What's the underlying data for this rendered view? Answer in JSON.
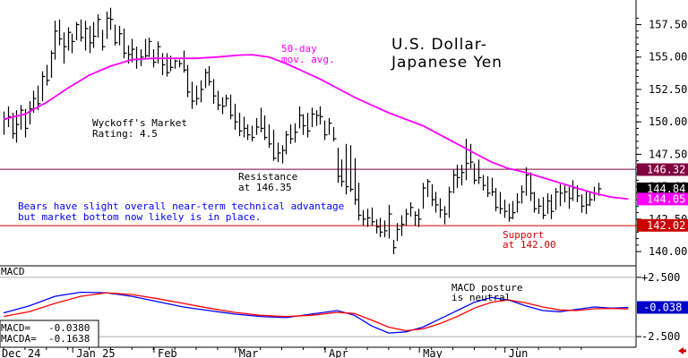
{
  "chart_data": [
    {
      "type": "ohlc",
      "title_line1": "U.S. Dollar-",
      "title_line2": "Japanese Yen",
      "ma_label_line1": "50-day",
      "ma_label_line2": "mov. avg.",
      "rating_line1": "Wyckoff's Market",
      "rating_line2": "Rating: 4.5",
      "resistance_label_line1": "Resistance",
      "resistance_label_line2": "at 146.35",
      "support_label_line1": "Support",
      "support_label_line2": "at 142.00",
      "commentary_line1": "Bears have slight overall near-term technical advantage",
      "commentary_line2": "but market bottom now likely is in place.",
      "x_labels": [
        "Dec 24",
        "Jan 25",
        "Feb",
        "Mar",
        "Apr",
        "May",
        "Jun"
      ],
      "y_ticks": [
        "157.50",
        "155.00",
        "152.50",
        "150.00",
        "147.50",
        "145.00",
        "142.50",
        "140.00"
      ],
      "y_tick_values": [
        157.5,
        155.0,
        152.5,
        150.0,
        147.5,
        145.0,
        142.5,
        140.0
      ],
      "ylim": [
        138.9,
        159.4
      ],
      "resistance": 146.35,
      "support": 142.0,
      "price_badges": [
        {
          "label": "146.32",
          "value": 146.32,
          "bg": "#800040",
          "fg": "#ffffff"
        },
        {
          "label": "144.84",
          "value": 144.84,
          "bg": "#000000",
          "fg": "#ffffff"
        },
        {
          "label": "144.05",
          "value": 144.05,
          "bg": "#ff00ff",
          "fg": "#ffffff"
        },
        {
          "label": "142.02",
          "value": 142.02,
          "bg": "#cc0000",
          "fg": "#ffffff"
        }
      ],
      "colors": {
        "bars": "#000000",
        "moving_average": "#ff00ff",
        "resistance_line": "#800040",
        "support_line": "#cc0000",
        "commentary": "#0000ff",
        "support_text": "#cc0000",
        "ma_text": "#ff00ff"
      },
      "bars": [
        [
          150.8,
          149.0,
          150.2
        ],
        [
          151.2,
          149.6,
          150.4
        ],
        [
          150.7,
          148.7,
          149.1
        ],
        [
          150.9,
          148.4,
          149.8
        ],
        [
          151.3,
          149.4,
          150.9
        ],
        [
          151.0,
          148.8,
          149.5
        ],
        [
          151.6,
          149.8,
          151.0
        ],
        [
          152.4,
          150.7,
          151.8
        ],
        [
          152.8,
          150.9,
          151.4
        ],
        [
          153.9,
          151.6,
          153.5
        ],
        [
          154.4,
          152.8,
          153.2
        ],
        [
          155.5,
          153.4,
          155.3
        ],
        [
          157.8,
          154.8,
          157.0
        ],
        [
          157.9,
          155.9,
          156.4
        ],
        [
          156.9,
          154.5,
          155.8
        ],
        [
          157.3,
          155.5,
          156.9
        ],
        [
          156.8,
          155.3,
          156.2
        ],
        [
          157.7,
          156.3,
          157.5
        ],
        [
          157.9,
          156.2,
          156.5
        ],
        [
          157.8,
          155.5,
          157.2
        ],
        [
          157.4,
          155.3,
          156.1
        ],
        [
          157.7,
          155.7,
          156.6
        ],
        [
          158.3,
          156.5,
          157.9
        ],
        [
          157.1,
          155.5,
          155.8
        ],
        [
          158.5,
          156.4,
          158.0
        ],
        [
          158.8,
          157.1,
          157.9
        ],
        [
          157.5,
          155.9,
          156.1
        ],
        [
          157.4,
          155.9,
          156.8
        ],
        [
          157.2,
          154.9,
          155.3
        ],
        [
          155.9,
          154.5,
          155.2
        ],
        [
          156.4,
          154.6,
          155.6
        ],
        [
          155.8,
          154.1,
          154.8
        ],
        [
          155.6,
          154.3,
          155.0
        ],
        [
          156.4,
          154.8,
          155.1
        ],
        [
          156.5,
          155.0,
          156.2
        ],
        [
          155.6,
          154.2,
          154.6
        ],
        [
          156.2,
          154.5,
          155.8
        ],
        [
          155.3,
          153.6,
          154.4
        ],
        [
          155.3,
          153.5,
          153.8
        ],
        [
          155.1,
          153.9,
          154.2
        ],
        [
          154.8,
          154.1,
          154.7
        ],
        [
          154.8,
          154.2,
          154.5
        ],
        [
          155.5,
          153.8,
          154.0
        ],
        [
          154.4,
          151.9,
          152.3
        ],
        [
          153.1,
          151.0,
          151.6
        ],
        [
          152.8,
          151.3,
          151.8
        ],
        [
          153.2,
          151.5,
          152.5
        ],
        [
          154.1,
          152.6,
          153.8
        ],
        [
          154.3,
          152.8,
          153.1
        ],
        [
          153.3,
          151.4,
          152.0
        ],
        [
          152.4,
          150.9,
          151.3
        ],
        [
          151.9,
          150.6,
          151.2
        ],
        [
          152.1,
          151.2,
          151.8
        ],
        [
          152.1,
          150.2,
          150.5
        ],
        [
          151.4,
          149.4,
          150.0
        ],
        [
          150.7,
          148.9,
          149.3
        ],
        [
          150.4,
          148.8,
          149.5
        ],
        [
          149.8,
          148.6,
          149.0
        ],
        [
          149.7,
          148.5,
          148.8
        ],
        [
          150.3,
          149.0,
          149.6
        ],
        [
          151.1,
          149.2,
          149.5
        ],
        [
          150.5,
          148.6,
          148.8
        ],
        [
          149.8,
          148.0,
          148.3
        ],
        [
          149.4,
          147.0,
          147.2
        ],
        [
          148.4,
          146.9,
          147.6
        ],
        [
          148.2,
          146.8,
          147.8
        ],
        [
          149.3,
          147.5,
          149.0
        ],
        [
          149.8,
          148.3,
          148.7
        ],
        [
          149.9,
          148.4,
          149.2
        ],
        [
          151.2,
          149.5,
          150.5
        ],
        [
          150.6,
          149.0,
          149.7
        ],
        [
          150.7,
          148.8,
          149.3
        ],
        [
          151.1,
          149.6,
          150.6
        ],
        [
          150.9,
          149.7,
          150.5
        ],
        [
          151.2,
          149.8,
          150.4
        ],
        [
          150.1,
          148.6,
          149.0
        ],
        [
          150.3,
          149.0,
          149.9
        ],
        [
          149.6,
          148.5,
          148.7
        ],
        [
          148.0,
          145.3,
          145.8
        ],
        [
          147.1,
          145.0,
          145.4
        ],
        [
          148.3,
          144.4,
          145.0
        ],
        [
          148.2,
          144.6,
          144.8
        ],
        [
          147.2,
          143.6,
          144.0
        ],
        [
          145.3,
          142.4,
          142.8
        ],
        [
          143.2,
          142.0,
          142.5
        ],
        [
          143.3,
          141.9,
          142.6
        ],
        [
          143.4,
          142.0,
          142.3
        ],
        [
          142.5,
          141.4,
          141.9
        ],
        [
          142.6,
          141.1,
          141.5
        ],
        [
          142.4,
          141.1,
          141.6
        ],
        [
          143.6,
          141.0,
          142.9
        ],
        [
          140.9,
          139.8,
          140.3
        ],
        [
          142.2,
          140.8,
          141.7
        ],
        [
          142.8,
          141.2,
          142.1
        ],
        [
          143.3,
          142.0,
          142.9
        ],
        [
          143.8,
          142.7,
          143.4
        ],
        [
          143.1,
          142.0,
          142.8
        ],
        [
          143.3,
          141.9,
          142.5
        ],
        [
          145.3,
          143.3,
          144.9
        ],
        [
          145.6,
          144.2,
          145.4
        ],
        [
          145.2,
          143.5,
          144.0
        ],
        [
          144.6,
          143.0,
          143.6
        ],
        [
          144.1,
          142.6,
          143.2
        ],
        [
          143.5,
          142.1,
          142.9
        ],
        [
          145.0,
          142.6,
          144.6
        ],
        [
          146.3,
          144.5,
          145.9
        ],
        [
          146.7,
          144.9,
          145.7
        ],
        [
          146.7,
          145.1,
          146.1
        ],
        [
          148.7,
          145.5,
          146.8
        ],
        [
          148.3,
          146.4,
          146.9
        ],
        [
          146.8,
          145.2,
          145.5
        ],
        [
          147.1,
          145.2,
          145.7
        ],
        [
          145.9,
          144.7,
          145.1
        ],
        [
          145.8,
          144.2,
          144.5
        ],
        [
          145.7,
          144.3,
          144.6
        ],
        [
          144.9,
          143.1,
          143.4
        ],
        [
          144.6,
          142.9,
          143.3
        ],
        [
          144.0,
          142.6,
          143.1
        ],
        [
          143.7,
          142.3,
          142.6
        ],
        [
          143.9,
          142.5,
          143.0
        ],
        [
          144.5,
          143.0,
          143.8
        ],
        [
          145.1,
          143.7,
          144.6
        ],
        [
          146.5,
          144.3,
          145.9
        ],
        [
          146.1,
          143.9,
          144.5
        ],
        [
          144.6,
          143.0,
          143.3
        ],
        [
          144.1,
          142.9,
          143.5
        ],
        [
          144.2,
          142.5,
          142.8
        ],
        [
          144.5,
          142.9,
          143.9
        ],
        [
          144.4,
          142.5,
          143.1
        ],
        [
          144.9,
          143.2,
          144.6
        ],
        [
          145.2,
          143.5,
          144.5
        ],
        [
          145.1,
          143.8,
          144.6
        ],
        [
          145.0,
          143.3,
          144.1
        ],
        [
          145.5,
          143.9,
          144.9
        ],
        [
          145.1,
          143.8,
          144.3
        ],
        [
          144.4,
          143.0,
          143.5
        ],
        [
          144.7,
          142.9,
          143.6
        ],
        [
          144.6,
          143.5,
          144.0
        ],
        [
          145.0,
          143.9,
          144.5
        ],
        [
          145.3,
          144.3,
          144.84
        ]
      ],
      "moving_average": [
        [
          0,
          150.2
        ],
        [
          5,
          150.6
        ],
        [
          10,
          151.5
        ],
        [
          15,
          152.6
        ],
        [
          20,
          153.6
        ],
        [
          25,
          154.3
        ],
        [
          30,
          154.8
        ],
        [
          35,
          154.9
        ],
        [
          40,
          154.9
        ],
        [
          45,
          154.9
        ],
        [
          50,
          155.0
        ],
        [
          55,
          155.15
        ],
        [
          58,
          155.18
        ],
        [
          62,
          155.0
        ],
        [
          66,
          154.5
        ],
        [
          70,
          153.9
        ],
        [
          74,
          153.3
        ],
        [
          78,
          152.6
        ],
        [
          82,
          151.9
        ],
        [
          86,
          151.3
        ],
        [
          90,
          150.7
        ],
        [
          94,
          150.2
        ],
        [
          98,
          149.7
        ],
        [
          102,
          149.0
        ],
        [
          106,
          148.3
        ],
        [
          110,
          147.6
        ],
        [
          114,
          146.9
        ],
        [
          118,
          146.4
        ],
        [
          122,
          146.1
        ],
        [
          126,
          145.7
        ],
        [
          130,
          145.3
        ],
        [
          134,
          144.9
        ],
        [
          138,
          144.5
        ],
        [
          142,
          144.2
        ],
        [
          146,
          144.05
        ]
      ]
    },
    {
      "type": "line",
      "title": "MACD",
      "y_ticks": [
        "+2.500",
        "-2.500"
      ],
      "y_tick_values": [
        2.5,
        -2.5
      ],
      "ylim": [
        -3.4,
        3.4
      ],
      "zero_badge": {
        "label": "-0.038",
        "value": -0.038,
        "bg": "#0000cc",
        "fg": "#ffffff"
      },
      "annotation_line1": "MACD posture",
      "annotation_line2": "is neutral",
      "readout_line1": "MACD=   -0.0380",
      "readout_line2": "MACDA=  -0.1638",
      "series": [
        {
          "name": "MACD",
          "color": "#0000ff",
          "points": [
            [
              0,
              -0.5
            ],
            [
              6,
              0.1
            ],
            [
              12,
              0.9
            ],
            [
              18,
              1.25
            ],
            [
              24,
              1.2
            ],
            [
              30,
              0.9
            ],
            [
              36,
              0.45
            ],
            [
              42,
              0.0
            ],
            [
              48,
              -0.3
            ],
            [
              54,
              -0.6
            ],
            [
              60,
              -0.8
            ],
            [
              66,
              -0.9
            ],
            [
              72,
              -0.6
            ],
            [
              78,
              -0.3
            ],
            [
              82,
              -0.7
            ],
            [
              86,
              -1.6
            ],
            [
              90,
              -2.2
            ],
            [
              94,
              -2.1
            ],
            [
              98,
              -1.7
            ],
            [
              102,
              -1.0
            ],
            [
              106,
              -0.3
            ],
            [
              110,
              0.4
            ],
            [
              114,
              0.8
            ],
            [
              118,
              0.6
            ],
            [
              122,
              0.1
            ],
            [
              126,
              -0.3
            ],
            [
              130,
              -0.4
            ],
            [
              134,
              -0.2
            ],
            [
              138,
              0.0
            ],
            [
              142,
              -0.1
            ],
            [
              146,
              -0.038
            ]
          ]
        },
        {
          "name": "MACDA",
          "color": "#ff0000",
          "points": [
            [
              0,
              -0.8
            ],
            [
              6,
              -0.4
            ],
            [
              12,
              0.3
            ],
            [
              18,
              0.9
            ],
            [
              24,
              1.2
            ],
            [
              30,
              1.05
            ],
            [
              36,
              0.7
            ],
            [
              42,
              0.3
            ],
            [
              48,
              -0.1
            ],
            [
              54,
              -0.45
            ],
            [
              60,
              -0.7
            ],
            [
              66,
              -0.8
            ],
            [
              72,
              -0.7
            ],
            [
              78,
              -0.45
            ],
            [
              82,
              -0.55
            ],
            [
              86,
              -1.1
            ],
            [
              90,
              -1.7
            ],
            [
              94,
              -2.0
            ],
            [
              98,
              -1.85
            ],
            [
              102,
              -1.4
            ],
            [
              106,
              -0.8
            ],
            [
              110,
              -0.1
            ],
            [
              114,
              0.4
            ],
            [
              118,
              0.6
            ],
            [
              122,
              0.35
            ],
            [
              126,
              0.0
            ],
            [
              130,
              -0.25
            ],
            [
              134,
              -0.3
            ],
            [
              138,
              -0.15
            ],
            [
              142,
              -0.12
            ],
            [
              146,
              -0.1638
            ]
          ]
        }
      ]
    }
  ]
}
